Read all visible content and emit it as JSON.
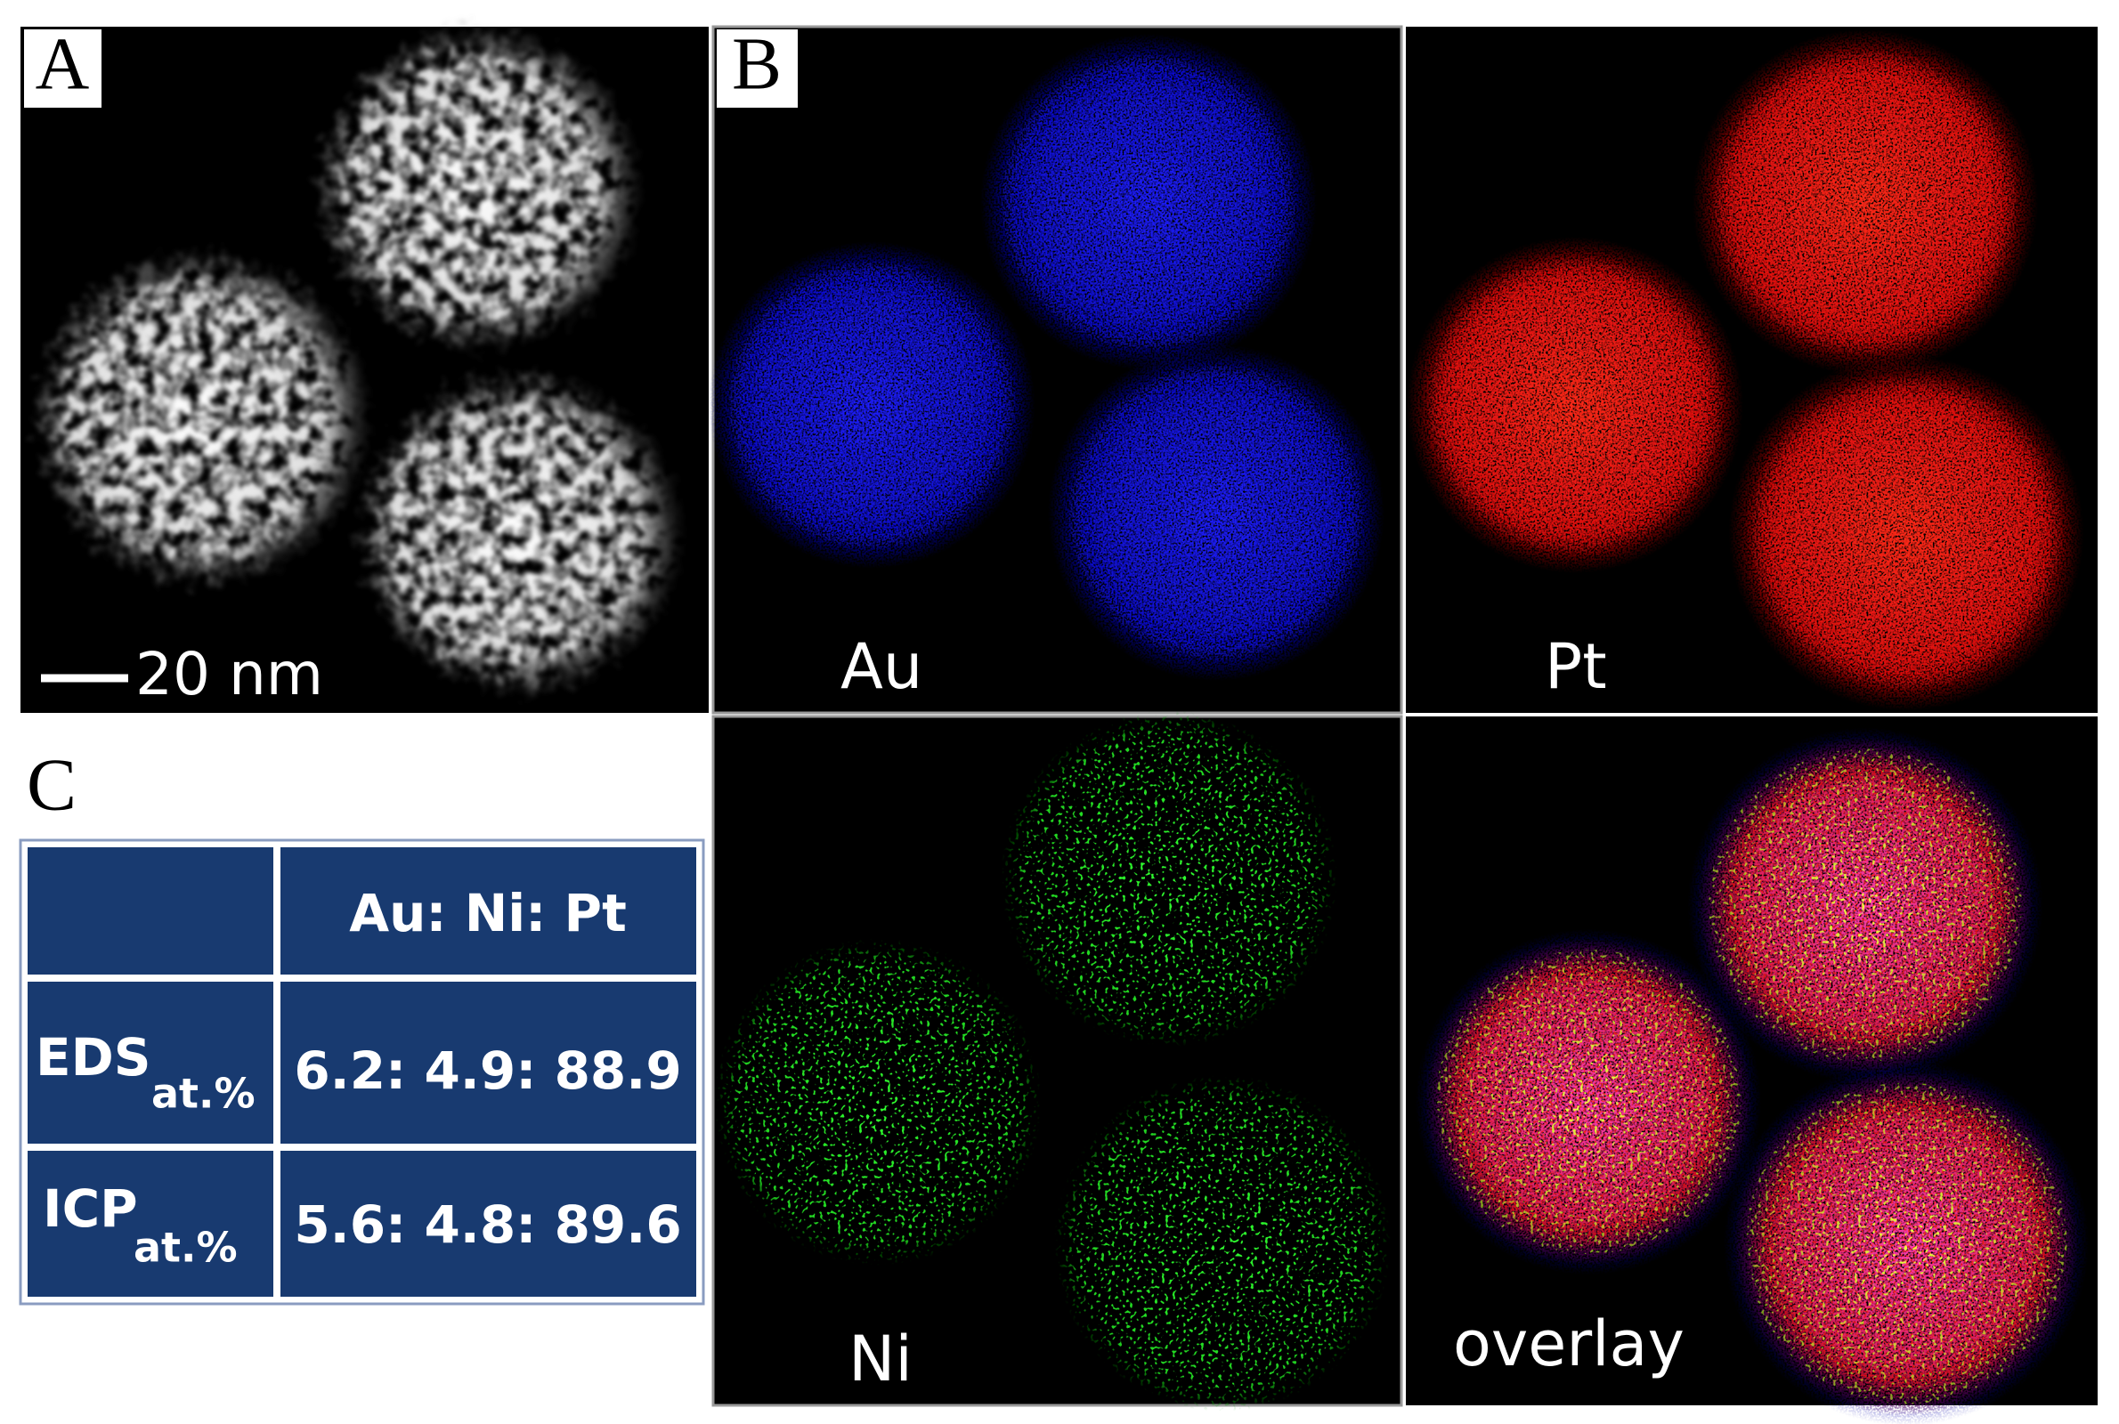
{
  "panel_a": {
    "label": "A",
    "scale_bar": "20 nm"
  },
  "panel_b": {
    "label": "B",
    "maps": [
      {
        "label": "Au"
      },
      {
        "label": "Pt"
      },
      {
        "label": "Ni"
      },
      {
        "label": "overlay"
      }
    ]
  },
  "panel_c": {
    "label": "C",
    "table": {
      "header": "Au: Ni: Pt",
      "rows": [
        {
          "name": "EDS",
          "subscript": "at.%",
          "ratio": "6.2: 4.9: 88.9"
        },
        {
          "name": "ICP",
          "subscript": "at.%",
          "ratio": "5.6: 4.8: 89.6"
        }
      ]
    }
  }
}
